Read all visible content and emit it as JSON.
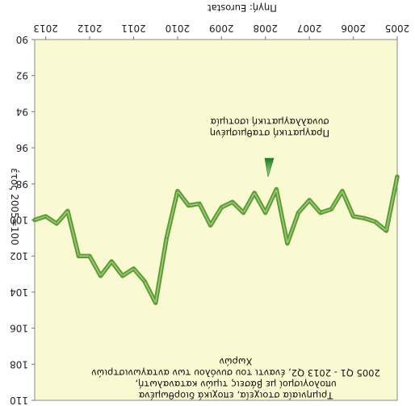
{
  "chart_data": {
    "type": "line",
    "orientation": "rotated-180",
    "title": "",
    "source": "Πηγή: Eurostat",
    "xlabel": "",
    "ylabel": "έτος 2005=100",
    "x_tick_labels": [
      "2005",
      "2006",
      "2007",
      "2008",
      "2009",
      "2010",
      "2011",
      "2012",
      "2013"
    ],
    "y_tick_labels": [
      "90",
      "92",
      "94",
      "96",
      "98",
      "100",
      "102",
      "104",
      "106",
      "108",
      "110"
    ],
    "ylim": [
      90,
      110
    ],
    "x": [
      "2005Q1",
      "2005Q2",
      "2005Q3",
      "2005Q4",
      "2006Q1",
      "2006Q2",
      "2006Q3",
      "2006Q4",
      "2007Q1",
      "2007Q2",
      "2007Q3",
      "2007Q4",
      "2008Q1",
      "2008Q2",
      "2008Q3",
      "2008Q4",
      "2009Q1",
      "2009Q2",
      "2009Q3",
      "2009Q4",
      "2010Q1",
      "2010Q2",
      "2010Q3",
      "2010Q4",
      "2011Q1",
      "2011Q2",
      "2011Q3",
      "2011Q4",
      "2012Q1",
      "2012Q2",
      "2012Q3",
      "2012Q4",
      "2013Q1",
      "2013Q2"
    ],
    "series": [
      {
        "values": [
          97.6,
          100.6,
          100.1,
          99.9,
          99.8,
          98.4,
          99.4,
          99.6,
          98.9,
          99.6,
          101.3,
          98.3,
          99.6,
          98.5,
          99.6,
          99.0,
          99.3,
          100.3,
          99.1,
          99.2,
          98.4,
          101.0,
          104.6,
          103.4,
          102.7,
          103.1,
          102.3,
          103.1,
          102.0,
          102.0,
          99.5,
          100.2,
          99.8,
          100.0
        ],
        "color": "#5e9a3a"
      }
    ],
    "annotations": {
      "arrow_text_line1": "Πραγματική σταθμισμένη",
      "arrow_text_line2": "συναλλαγματική ισοτιμία",
      "note_line1": "Τριμηνιαία στοιχεία, εποχικά διορθωμένα",
      "note_line2": "υπολογισμοί με βάσεις τιμών καταναλωτή,",
      "note_line3": "2005 Q1 - 2013 Q2, έναντι του συνόλου των ανταγωνιστριών",
      "note_line4": "Χωρών"
    },
    "colors": {
      "plot_background": "#fafad2",
      "plot_border": "#888888",
      "line": "#5e9a3a",
      "line_highlight": "#9ccf6a",
      "arrow": "#2e8b2e"
    },
    "grid": false,
    "legend": "none"
  }
}
